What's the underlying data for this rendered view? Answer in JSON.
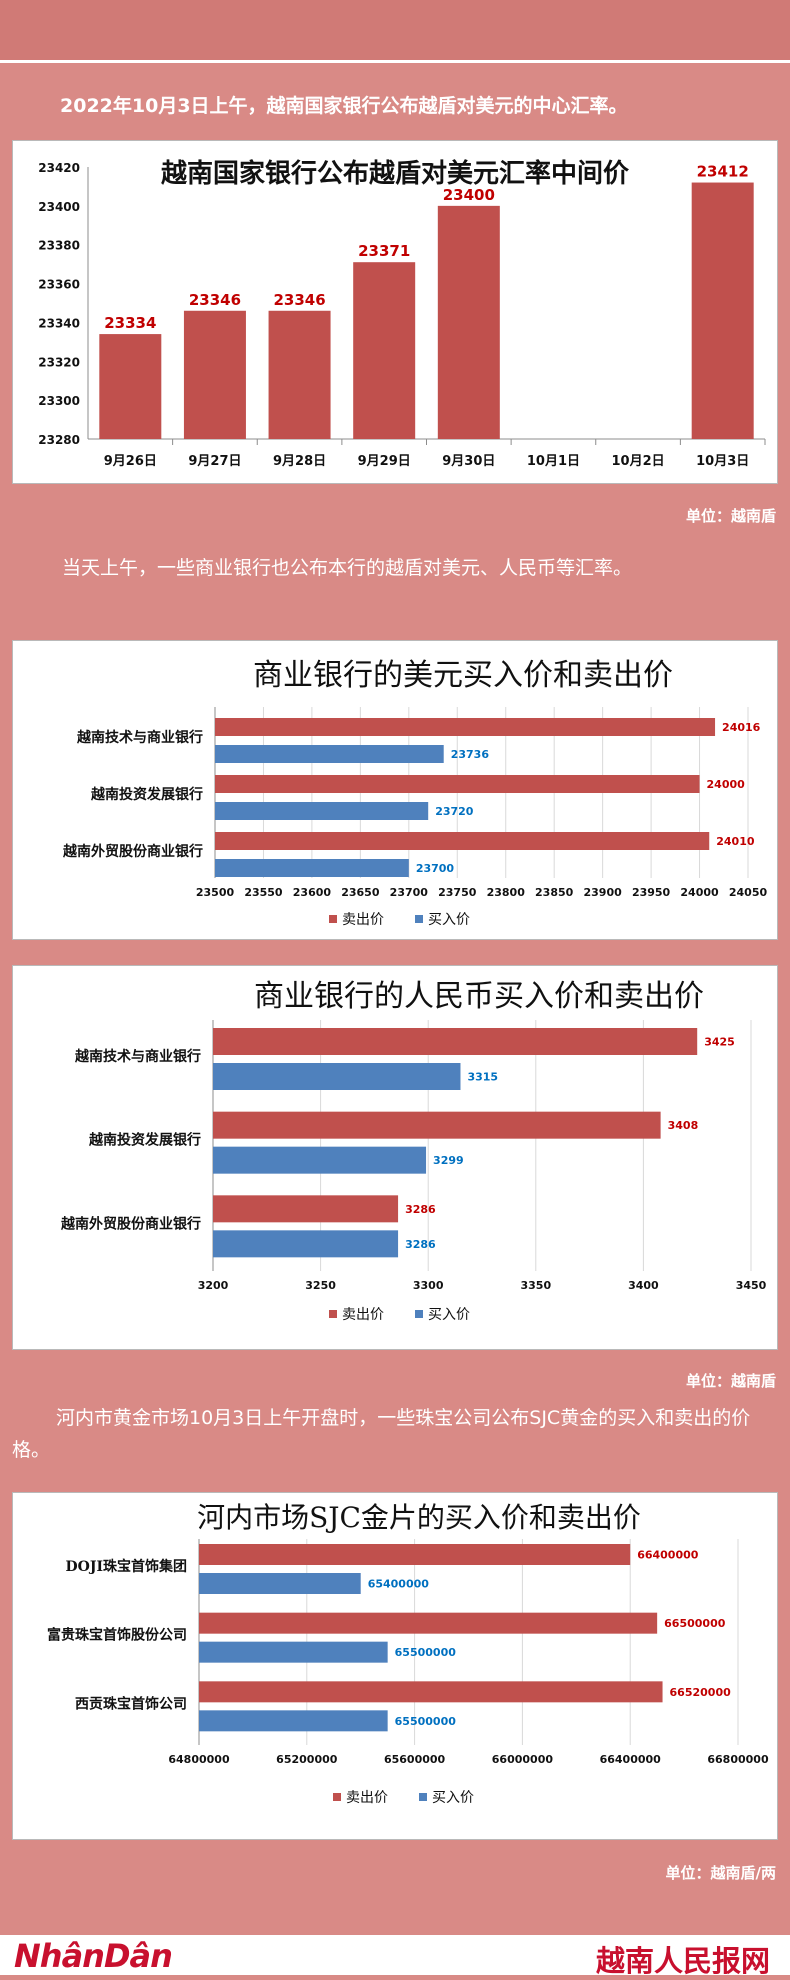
{
  "colors": {
    "background": "#d98a86",
    "sell": "#c0504d",
    "buy": "#4f81bd",
    "sell_label": "#c00000",
    "buy_label": "#0070c0"
  },
  "intro1": "2022年10月3日上午，越南国家银行公布越盾对美元的中心汇率。",
  "unit1": "单位：越南盾",
  "intro2": "当天上午，一些商业银行也公布本行的越盾对美元、人民币等汇率。",
  "unit2": "单位：越南盾",
  "intro3": "河内市黄金市场10月3日上午开盘时，一些珠宝公司公布SJC黄金的买入和卖出的价格。",
  "unit3": "单位：越南盾/两",
  "footer": {
    "left_logo": "NhânDân",
    "right_logo": "越南人民报网"
  },
  "chart_data": [
    {
      "type": "bar",
      "title": "越南国家银行公布越盾对美元汇率中间价",
      "categories": [
        "9月26日",
        "9月27日",
        "9月28日",
        "9月29日",
        "9月30日",
        "10月1日",
        "10月2日",
        "10月3日"
      ],
      "values": [
        23334,
        23346,
        23346,
        23371,
        23400,
        null,
        null,
        23412
      ],
      "ylim": [
        23280,
        23420
      ],
      "yticks": [
        23280,
        23300,
        23320,
        23340,
        23360,
        23380,
        23400,
        23420
      ]
    },
    {
      "type": "bar",
      "orientation": "horizontal",
      "title": "商业银行的美元买入价和卖出价",
      "categories": [
        "越南技术与商业银行",
        "越南投资发展银行",
        "越南外贸股份商业银行"
      ],
      "series": [
        {
          "name": "卖出价",
          "values": [
            24016,
            24000,
            24010
          ]
        },
        {
          "name": "买入价",
          "values": [
            23736,
            23720,
            23700
          ]
        }
      ],
      "xlim": [
        23500,
        24050
      ],
      "xticks": [
        23500,
        23550,
        23600,
        23650,
        23700,
        23750,
        23800,
        23850,
        23900,
        23950,
        24000,
        24050
      ]
    },
    {
      "type": "bar",
      "orientation": "horizontal",
      "title": "商业银行的人民币买入价和卖出价",
      "categories": [
        "越南技术与商业银行",
        "越南投资发展银行",
        "越南外贸股份商业银行"
      ],
      "series": [
        {
          "name": "卖出价",
          "values": [
            3425,
            3408,
            3286
          ]
        },
        {
          "name": "买入价",
          "values": [
            3315,
            3299,
            3286
          ]
        }
      ],
      "xlim": [
        3200,
        3450
      ],
      "xticks": [
        3200,
        3250,
        3300,
        3350,
        3400,
        3450
      ]
    },
    {
      "type": "bar",
      "orientation": "horizontal",
      "title": "河内市场SJC金片的买入价和卖出价",
      "categories": [
        "DOJI珠宝首饰集团",
        "富贵珠宝首饰股份公司",
        "西贡珠宝首饰公司"
      ],
      "series": [
        {
          "name": "卖出价",
          "values": [
            66400000,
            66500000,
            66520000
          ]
        },
        {
          "name": "买入价",
          "values": [
            65400000,
            65500000,
            65500000
          ]
        }
      ],
      "xlim": [
        64800000,
        66800000
      ],
      "xticks": [
        64800000,
        65200000,
        65600000,
        66000000,
        66400000,
        66800000
      ]
    }
  ]
}
